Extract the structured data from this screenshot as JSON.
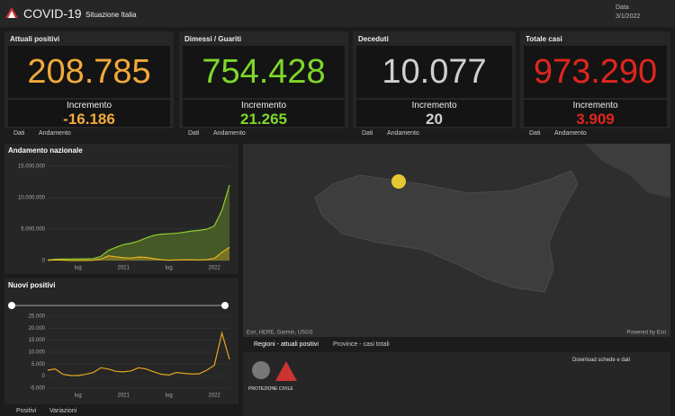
{
  "header": {
    "title": "COVID-19",
    "subtitle": "Situazione Italia",
    "date_label": "Data",
    "date": "3/1/2022"
  },
  "cards": [
    {
      "title": "Attuali positivi",
      "value": "208.785",
      "increment_label": "Incremento",
      "increment": "-16.186",
      "color": "#f2a93b"
    },
    {
      "title": "Dimessi / Guariti",
      "value": "754.428",
      "increment_label": "Incremento",
      "increment": "21.265",
      "color": "#7fd82a"
    },
    {
      "title": "Deceduti",
      "value": "10.077",
      "increment_label": "Incremento",
      "increment": "20",
      "color": "#cfcfcf"
    },
    {
      "title": "Totale casi",
      "value": "973.290",
      "increment_label": "Incremento",
      "increment": "3.909",
      "color": "#e0261e"
    }
  ],
  "card_tabs": [
    "Dati",
    "Andamento"
  ],
  "charts": [
    {
      "type": "area",
      "title": "Andamento nazionale",
      "categories": [
        null,
        null,
        null,
        null,
        "lug",
        null,
        null,
        null,
        null,
        null,
        "2021",
        null,
        null,
        null,
        null,
        null,
        "lug",
        null,
        null,
        null,
        null,
        null,
        "2022",
        null,
        null
      ],
      "ylim": [
        0,
        15000000
      ],
      "yticks": [
        0,
        {
          "value": 5000000,
          "label": "5.000.000"
        },
        {
          "value": 10000000,
          "label": "10.000.000"
        },
        {
          "value": 15000000,
          "label": "15.000.000"
        }
      ],
      "series": [
        {
          "color": "#8fce2a",
          "values": [
            100000,
            200000,
            230000,
            240000,
            250000,
            270000,
            310000,
            650000,
            1600000,
            2100000,
            2550000,
            2750000,
            3100000,
            3600000,
            4000000,
            4200000,
            4260000,
            4350000,
            4500000,
            4700000,
            4800000,
            5000000,
            5500000,
            8000000,
            12000000
          ]
        },
        {
          "color": "#e6b422",
          "values": [
            50000,
            100000,
            60000,
            20000,
            13000,
            20000,
            50000,
            250000,
            750000,
            600000,
            450000,
            400000,
            550000,
            500000,
            300000,
            150000,
            50000,
            100000,
            130000,
            120000,
            100000,
            150000,
            350000,
            1300000,
            2100000
          ]
        }
      ]
    },
    {
      "type": "line",
      "title": "Nuovi positivi",
      "categories": [
        null,
        null,
        null,
        null,
        "lug",
        null,
        null,
        null,
        null,
        null,
        "2021",
        null,
        null,
        null,
        null,
        null,
        "lug",
        null,
        null,
        null,
        null,
        null,
        "2022",
        null,
        null
      ],
      "ylim": [
        -5000,
        25000
      ],
      "yticks": [
        {
          "value": -5000,
          "label": "-5.000"
        },
        0,
        {
          "value": 5000,
          "label": "5.000"
        },
        {
          "value": 10000,
          "label": "10.000"
        },
        {
          "value": 15000,
          "label": "15.000"
        },
        {
          "value": 20000,
          "label": "20.000"
        },
        {
          "value": 25000,
          "label": "25.000"
        }
      ],
      "series": [
        {
          "color": "#e6a520",
          "values": [
            2500,
            3000,
            800,
            300,
            250,
            800,
            1500,
            3500,
            3000,
            2000,
            1800,
            2200,
            3500,
            3000,
            1800,
            800,
            500,
            1500,
            1200,
            900,
            1000,
            2500,
            4500,
            18000,
            7000
          ]
        }
      ]
    }
  ],
  "chart_tabs": [
    "Positivi",
    "Variazioni"
  ],
  "map": {
    "attribution": "Esri, HERE, Garmin, USGS",
    "powered": "Powered by Esri",
    "tabs": [
      "Regioni - attuali positivi",
      "Province - casi totali"
    ]
  },
  "info": {
    "logo_text": "PROTEZIONE CIVILE",
    "download": "Download schede e dati"
  }
}
